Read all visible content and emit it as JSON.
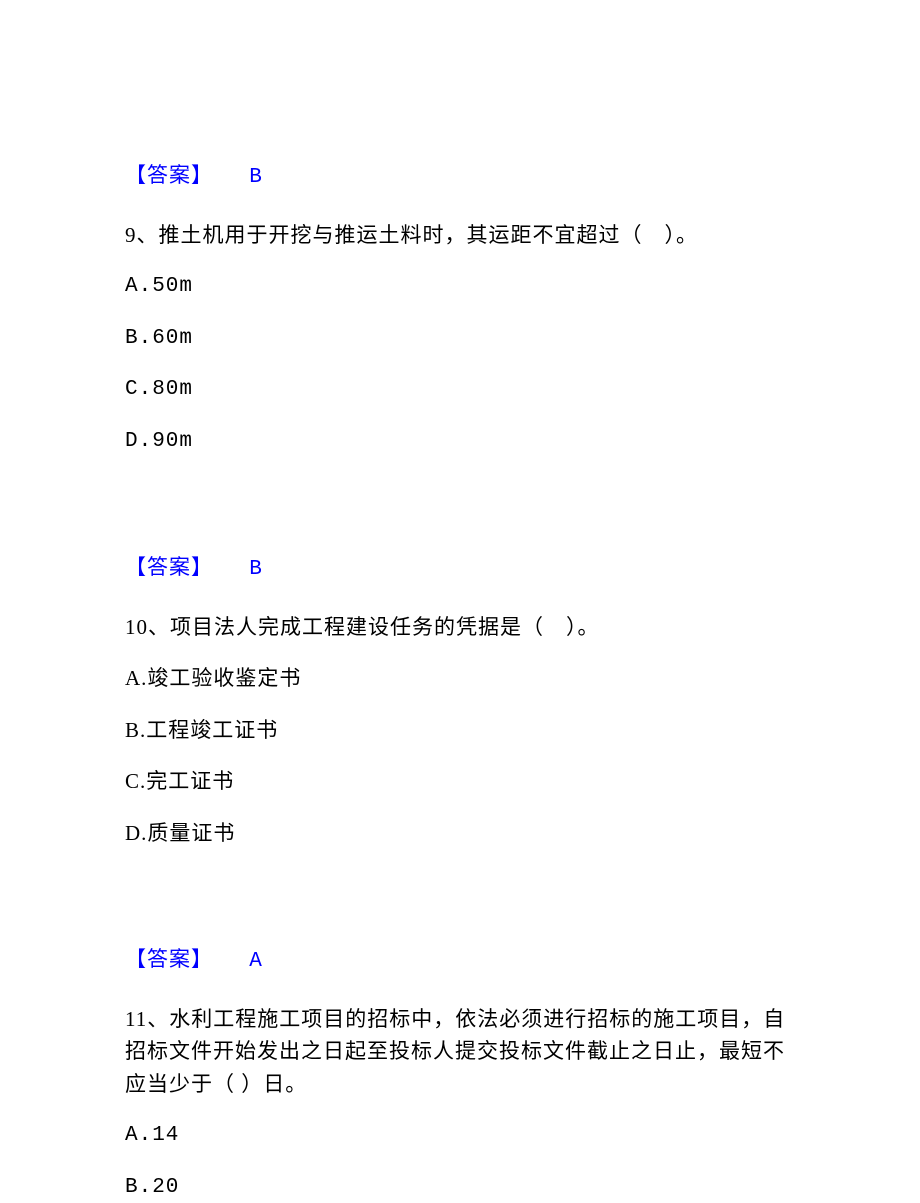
{
  "colors": {
    "answer_color": "#0000ff",
    "text_color": "#000000",
    "background_color": "#ffffff"
  },
  "typography": {
    "body_font": "SimSun, 宋体, serif",
    "mono_font": "Courier New",
    "font_size_pt": 16
  },
  "answer8": {
    "label": "【答案】",
    "value": "B"
  },
  "q9": {
    "text": "9、推土机用于开挖与推运土料时，其运距不宜超过（　）。",
    "options": {
      "a": "A.50m",
      "b": "B.60m",
      "c": "C.80m",
      "d": "D.90m"
    }
  },
  "answer9": {
    "label": "【答案】",
    "value": "B"
  },
  "q10": {
    "text": "10、项目法人完成工程建设任务的凭据是（　）。",
    "options": {
      "a": "A.竣工验收鉴定书",
      "b": "B.工程竣工证书",
      "c": "C.完工证书",
      "d": "D.质量证书"
    }
  },
  "answer10": {
    "label": "【答案】",
    "value": "A"
  },
  "q11": {
    "text": "11、水利工程施工项目的招标中，依法必须进行招标的施工项目，自招标文件开始发出之日起至投标人提交投标文件截止之日止，最短不应当少于（ ）日。",
    "options": {
      "a": "A.14",
      "b": "B.20"
    }
  }
}
